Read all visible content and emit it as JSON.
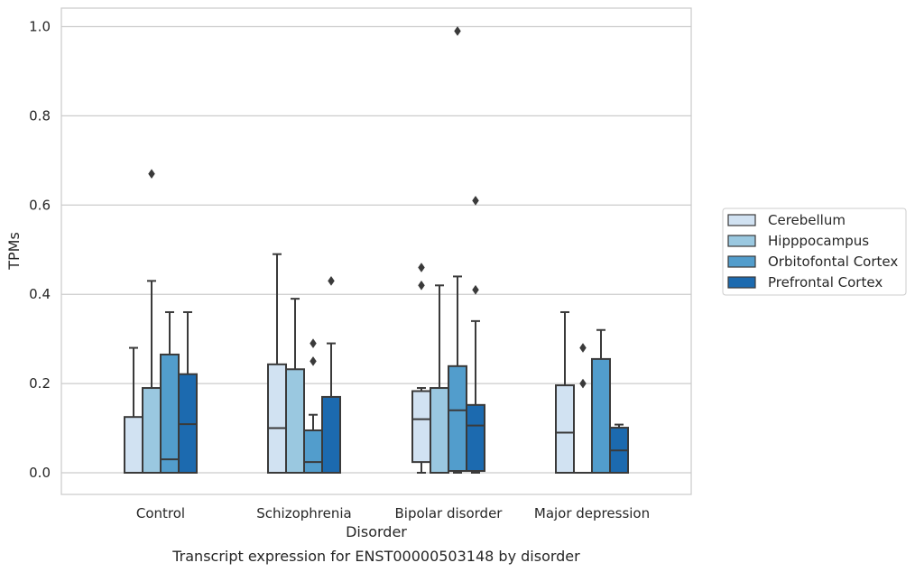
{
  "chart_data": {
    "type": "box",
    "title": "",
    "caption": "Transcript expression for ENST00000503148 by disorder",
    "xlabel": "Disorder",
    "ylabel": "TPMs",
    "ylim": [
      -0.05,
      1.04
    ],
    "yticks": [
      "0.0",
      "0.2",
      "0.4",
      "0.6",
      "0.8",
      "1.0"
    ],
    "grid": "horizontal",
    "legend_position": "right",
    "categories": [
      "Control",
      "Schizophrenia",
      "Bipolar disorder",
      "Major depression"
    ],
    "series": [
      {
        "name": "Cerebellum",
        "color": "#d1e2f2",
        "boxes": [
          {
            "whislo": 0.0,
            "q1": 0.0,
            "med": 0.0,
            "q3": 0.125,
            "whishi": 0.28,
            "fliers": []
          },
          {
            "whislo": 0.0,
            "q1": 0.0,
            "med": 0.1,
            "q3": 0.243,
            "whishi": 0.49,
            "fliers": []
          },
          {
            "whislo": 0.0,
            "q1": 0.024,
            "med": 0.12,
            "q3": 0.183,
            "whishi": 0.19,
            "fliers": [
              0.42,
              0.46
            ]
          },
          {
            "whislo": 0.0,
            "q1": 0.0,
            "med": 0.09,
            "q3": 0.196,
            "whishi": 0.36,
            "fliers": []
          }
        ]
      },
      {
        "name": "Hipppocampus",
        "color": "#9ac8e0",
        "boxes": [
          {
            "whislo": 0.0,
            "q1": 0.0,
            "med": 0.0,
            "q3": 0.19,
            "whishi": 0.43,
            "fliers": [
              0.67
            ]
          },
          {
            "whislo": 0.0,
            "q1": 0.0,
            "med": 0.0,
            "q3": 0.232,
            "whishi": 0.39,
            "fliers": []
          },
          {
            "whislo": 0.0,
            "q1": 0.0,
            "med": 0.0,
            "q3": 0.19,
            "whishi": 0.42,
            "fliers": []
          },
          {
            "whislo": 0.0,
            "q1": 0.0,
            "med": 0.0,
            "q3": 0.0,
            "whishi": 0.0,
            "fliers": [
              0.2,
              0.28
            ]
          }
        ]
      },
      {
        "name": "Orbitofontal Cortex",
        "color": "#529dcc",
        "boxes": [
          {
            "whislo": 0.0,
            "q1": 0.0,
            "med": 0.03,
            "q3": 0.265,
            "whishi": 0.36,
            "fliers": []
          },
          {
            "whislo": 0.0,
            "q1": 0.0,
            "med": 0.024,
            "q3": 0.095,
            "whishi": 0.13,
            "fliers": [
              0.25,
              0.29
            ]
          },
          {
            "whislo": 0.0,
            "q1": 0.004,
            "med": 0.14,
            "q3": 0.239,
            "whishi": 0.44,
            "fliers": [
              0.99
            ]
          },
          {
            "whislo": 0.0,
            "q1": 0.0,
            "med": 0.0,
            "q3": 0.255,
            "whishi": 0.32,
            "fliers": []
          }
        ]
      },
      {
        "name": "Prefrontal Cortex",
        "color": "#1c6aaf",
        "boxes": [
          {
            "whislo": 0.0,
            "q1": 0.0,
            "med": 0.109,
            "q3": 0.221,
            "whishi": 0.36,
            "fliers": []
          },
          {
            "whislo": 0.0,
            "q1": 0.0,
            "med": 0.0,
            "q3": 0.17,
            "whishi": 0.29,
            "fliers": [
              0.43
            ]
          },
          {
            "whislo": 0.0,
            "q1": 0.004,
            "med": 0.106,
            "q3": 0.152,
            "whishi": 0.34,
            "fliers": [
              0.41,
              0.61
            ]
          },
          {
            "whislo": 0.0,
            "q1": 0.0,
            "med": 0.05,
            "q3": 0.101,
            "whishi": 0.108,
            "fliers": []
          }
        ]
      }
    ]
  }
}
